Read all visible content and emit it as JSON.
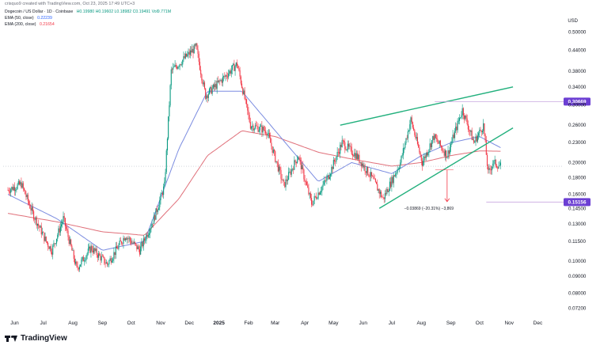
{
  "header": {
    "creator_line": "crisquo9 created with TradingView.com, Oct 23, 2025 17:49 UTC+3"
  },
  "legend": {
    "symbol": "Dogecoin / US Dollar · 1D · Coinbase",
    "ohlc": "H0.19980  H0.19602  L0.18982  C0.19491  Vol9.771M",
    "ema50_label": "EMA (50, close)",
    "ema50_value": "0.22239",
    "ema200_label": "EMA (200, close)",
    "ema200_value": "0.21654"
  },
  "currency": "USD",
  "brand": "TradingView",
  "colors": {
    "up": "#089981",
    "down": "#f23645",
    "ema50": "#7b8ce0",
    "ema200": "#e0707a",
    "trendline": "#22b07d",
    "badge": "#6c3fd3",
    "measure": "#f23645"
  },
  "chart_data": {
    "type": "candlestick",
    "y_axis": {
      "scale": "log",
      "ylim": [
        0.066,
        0.56
      ],
      "ticks": [
        "0.50000",
        "0.44000",
        "0.38000",
        "0.34000",
        "0.30000",
        "0.26000",
        "0.23000",
        "0.20000",
        "0.18000",
        "0.16000",
        "0.14500",
        "0.13000",
        "0.11500",
        "0.10000",
        "0.09000",
        "0.08000",
        "0.07200"
      ]
    },
    "x_axis": {
      "labels": [
        "Jun",
        "Jul",
        "Aug",
        "Sep",
        "Oct",
        "Nov",
        "Dec",
        "2025",
        "Feb",
        "Mar",
        "Apr",
        "May",
        "Jun",
        "Jul",
        "Aug",
        "Sep",
        "Oct",
        "Nov",
        "Dec"
      ]
    },
    "price_badges": [
      "0.30669",
      "0.15156"
    ],
    "current_price": 0.19491,
    "measure_label": "−0.03869 (−20.31%) −3,869",
    "price_path": [
      [
        "2024-05-25",
        0.165
      ],
      [
        "2024-06-08",
        0.172
      ],
      [
        "2024-06-20",
        0.14
      ],
      [
        "2024-07-04",
        0.115
      ],
      [
        "2024-07-10",
        0.108
      ],
      [
        "2024-07-22",
        0.135
      ],
      [
        "2024-08-05",
        0.095
      ],
      [
        "2024-08-20",
        0.11
      ],
      [
        "2024-09-06",
        0.098
      ],
      [
        "2024-09-25",
        0.12
      ],
      [
        "2024-10-10",
        0.108
      ],
      [
        "2024-10-25",
        0.135
      ],
      [
        "2024-11-05",
        0.17
      ],
      [
        "2024-11-12",
        0.38
      ],
      [
        "2024-11-20",
        0.4
      ],
      [
        "2024-12-08",
        0.45
      ],
      [
        "2024-12-18",
        0.32
      ],
      [
        "2025-01-05",
        0.36
      ],
      [
        "2025-01-20",
        0.4
      ],
      [
        "2025-02-03",
        0.26
      ],
      [
        "2025-02-20",
        0.25
      ],
      [
        "2025-03-10",
        0.17
      ],
      [
        "2025-03-25",
        0.21
      ],
      [
        "2025-04-08",
        0.15
      ],
      [
        "2025-04-25",
        0.18
      ],
      [
        "2025-05-10",
        0.23
      ],
      [
        "2025-05-25",
        0.21
      ],
      [
        "2025-06-10",
        0.18
      ],
      [
        "2025-06-22",
        0.155
      ],
      [
        "2025-07-10",
        0.2
      ],
      [
        "2025-07-21",
        0.27
      ],
      [
        "2025-08-02",
        0.2
      ],
      [
        "2025-08-14",
        0.24
      ],
      [
        "2025-08-28",
        0.21
      ],
      [
        "2025-09-13",
        0.29
      ],
      [
        "2025-09-25",
        0.23
      ],
      [
        "2025-10-05",
        0.26
      ],
      [
        "2025-10-10",
        0.185
      ],
      [
        "2025-10-15",
        0.2
      ],
      [
        "2025-10-23",
        0.195
      ]
    ],
    "ema50_path": [
      [
        "2024-05-25",
        0.16
      ],
      [
        "2024-07-15",
        0.135
      ],
      [
        "2024-09-01",
        0.108
      ],
      [
        "2024-10-15",
        0.115
      ],
      [
        "2024-11-20",
        0.22
      ],
      [
        "2024-12-20",
        0.33
      ],
      [
        "2025-01-25",
        0.33
      ],
      [
        "2025-03-01",
        0.25
      ],
      [
        "2025-04-15",
        0.175
      ],
      [
        "2025-05-20",
        0.2
      ],
      [
        "2025-07-01",
        0.185
      ],
      [
        "2025-08-01",
        0.21
      ],
      [
        "2025-09-01",
        0.23
      ],
      [
        "2025-10-01",
        0.24
      ],
      [
        "2025-10-23",
        0.222
      ]
    ],
    "ema200_path": [
      [
        "2024-05-25",
        0.14
      ],
      [
        "2024-07-15",
        0.132
      ],
      [
        "2024-09-01",
        0.123
      ],
      [
        "2024-10-15",
        0.12
      ],
      [
        "2024-11-20",
        0.155
      ],
      [
        "2024-12-20",
        0.21
      ],
      [
        "2025-01-25",
        0.25
      ],
      [
        "2025-03-01",
        0.24
      ],
      [
        "2025-04-15",
        0.215
      ],
      [
        "2025-05-20",
        0.205
      ],
      [
        "2025-07-01",
        0.195
      ],
      [
        "2025-08-01",
        0.2
      ],
      [
        "2025-09-01",
        0.21
      ],
      [
        "2025-10-01",
        0.217
      ],
      [
        "2025-10-23",
        0.2165
      ]
    ],
    "trendlines": [
      {
        "name": "upper",
        "from": [
          "2025-05-08",
          0.26
        ],
        "to": [
          "2025-11-05",
          0.34
        ]
      },
      {
        "name": "lower",
        "from": [
          "2025-06-18",
          0.145
        ],
        "to": [
          "2025-11-05",
          0.255
        ]
      }
    ],
    "horizontal_levels": [
      0.30669,
      0.15156
    ]
  }
}
